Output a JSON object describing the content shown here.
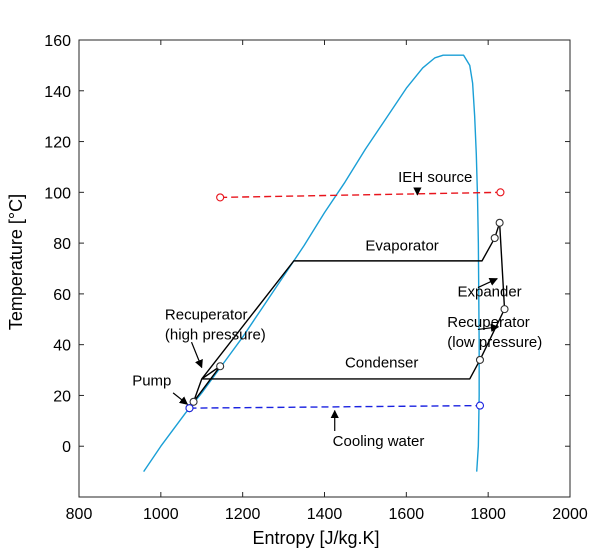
{
  "chart_data": {
    "type": "line",
    "title": "",
    "xlabel": "Entropy [J/kg.K]",
    "ylabel": "Temperature [°C]",
    "xlim": [
      800,
      2000
    ],
    "ylim": [
      -20,
      160
    ],
    "xticks": [
      800,
      1000,
      1200,
      1400,
      1600,
      1800,
      2000
    ],
    "yticks": [
      0,
      20,
      40,
      60,
      80,
      100,
      120,
      140,
      160
    ],
    "grid": false,
    "legend": "none",
    "series": [
      {
        "key": "saturation_dome",
        "color": "#1a9fd6",
        "style": "solid",
        "x": [
          958,
          1000,
          1060,
          1100,
          1150,
          1200,
          1250,
          1300,
          1350,
          1400,
          1450,
          1500,
          1550,
          1600,
          1640,
          1670,
          1690,
          1740,
          1755,
          1762,
          1767,
          1771,
          1774,
          1776,
          1777,
          1778,
          1778,
          1776,
          1774,
          1772
        ],
        "y": [
          -10,
          0,
          13,
          21,
          32,
          43,
          55,
          67,
          79,
          92,
          104,
          117,
          129,
          141,
          149,
          153,
          154,
          154,
          150,
          143,
          130,
          115,
          98,
          80,
          60,
          40,
          20,
          0,
          -5,
          -10
        ]
      },
      {
        "key": "orc_cycle",
        "color": "#000000",
        "style": "solid",
        "markers": "circle",
        "marker_indices": [
          0,
          1,
          2,
          6,
          7,
          8,
          9
        ],
        "x": [
          1070,
          1080,
          1145,
          1100,
          1325,
          1785,
          1816,
          1828,
          1840,
          1780,
          1755,
          1100,
          1080,
          1070
        ],
        "y": [
          15,
          17.5,
          31.5,
          26.5,
          73,
          73,
          82,
          88,
          54,
          34,
          26.5,
          26.5,
          17.5,
          15
        ]
      },
      {
        "key": "ieh_source",
        "color": "#e8141c",
        "style": "dashed",
        "markers": "circle-ends",
        "x": [
          1145,
          1830
        ],
        "y": [
          98,
          100
        ]
      },
      {
        "key": "cooling_water",
        "color": "#1a22e0",
        "style": "dashed",
        "markers": "circle-ends",
        "x": [
          1070,
          1780
        ],
        "y": [
          15,
          16
        ]
      }
    ],
    "annotations": [
      {
        "key": "ieh",
        "lines": [
          "IEH source"
        ],
        "text_at": [
          1580,
          104
        ],
        "arrow_from": [
          1627,
          101
        ],
        "arrow_to": [
          1627,
          99
        ]
      },
      {
        "key": "evaporator",
        "lines": [
          "Evaporator"
        ],
        "text_at": [
          1500,
          77
        ],
        "arrow_from": null,
        "arrow_to": null
      },
      {
        "key": "expander",
        "lines": [
          "Expander"
        ],
        "text_at": [
          1725,
          59
        ],
        "arrow_from": [
          1775,
          62.5
        ],
        "arrow_to": [
          1822,
          66
        ]
      },
      {
        "key": "recup_low",
        "lines": [
          "Recuperator",
          "(low pressure)"
        ],
        "text_at": [
          1700,
          47
        ],
        "arrow_from": [
          1775,
          46
        ],
        "arrow_to": [
          1825,
          47
        ]
      },
      {
        "key": "condenser",
        "lines": [
          "Condenser"
        ],
        "text_at": [
          1450,
          31
        ],
        "arrow_from": null,
        "arrow_to": null
      },
      {
        "key": "recup_high",
        "lines": [
          "Recuperator",
          "(high pressure)"
        ],
        "text_at": [
          1010,
          50
        ],
        "arrow_from": [
          1075,
          41
        ],
        "arrow_to": [
          1100,
          31
        ]
      },
      {
        "key": "pump",
        "lines": [
          "Pump"
        ],
        "text_at": [
          930,
          24
        ],
        "arrow_from": [
          1030,
          21
        ],
        "arrow_to": [
          1065,
          16.5
        ]
      },
      {
        "key": "cooling",
        "lines": [
          "Cooling water"
        ],
        "text_at": [
          1420,
          0
        ],
        "arrow_from": [
          1425,
          6
        ],
        "arrow_to": [
          1425,
          14
        ]
      }
    ]
  }
}
